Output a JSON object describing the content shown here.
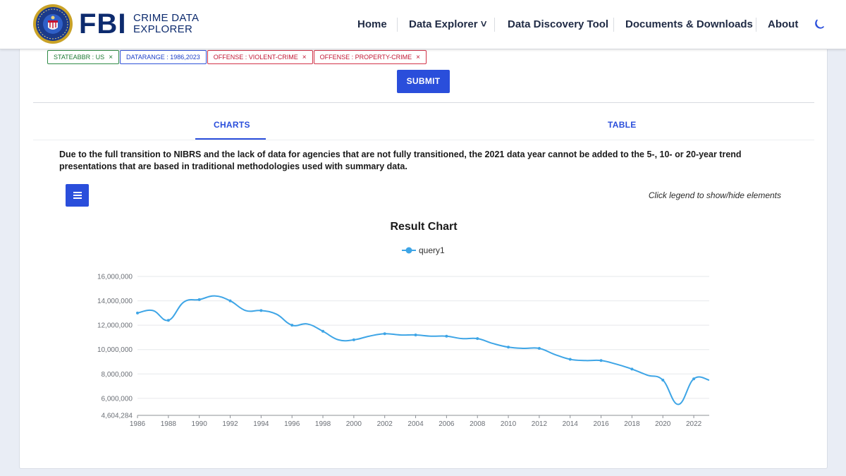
{
  "header": {
    "brand_main": "FBI",
    "brand_sub_line1": "CRIME DATA",
    "brand_sub_line2": "EXPLORER",
    "nav": [
      {
        "label": "Home"
      },
      {
        "label": "Data Explorer ˅"
      },
      {
        "label": "Data Discovery Tool"
      },
      {
        "label": "Documents & Downloads"
      },
      {
        "label": "About"
      }
    ]
  },
  "filters": [
    {
      "label": "STATEABBR : US",
      "remove": "×",
      "color": "#2e8b46"
    },
    {
      "label": "DATARANGE : 1986,2023",
      "remove": "",
      "color": "#2f52d8"
    },
    {
      "label": "OFFENSE : VIOLENT-CRIME",
      "remove": "×",
      "color": "#d23349"
    },
    {
      "label": "OFFENSE : PROPERTY-CRIME",
      "remove": "×",
      "color": "#d23349"
    }
  ],
  "submit_label": "SUBMIT",
  "tabs": {
    "charts": "CHARTS",
    "table": "TABLE"
  },
  "notice": "Due to the full transition to NIBRS and the lack of data for agencies that are not fully transitioned, the 2021 data year cannot be added to the 5-, 10- or 20-year trend presentations that are based in traditional methodologies used with summary data.",
  "legend_hint": "Click legend to show/hide elements",
  "colors": {
    "accent": "#2a4edb",
    "series": "#3ea5e6",
    "brand": "#0d2b6e"
  },
  "chart_data": {
    "type": "line",
    "title": "Result Chart",
    "series": [
      {
        "name": "query1",
        "x": [
          1986,
          1987,
          1988,
          1989,
          1990,
          1991,
          1992,
          1993,
          1994,
          1995,
          1996,
          1997,
          1998,
          1999,
          2000,
          2001,
          2002,
          2003,
          2004,
          2005,
          2006,
          2007,
          2008,
          2009,
          2010,
          2011,
          2012,
          2013,
          2014,
          2015,
          2016,
          2017,
          2018,
          2019,
          2020,
          2021,
          2022,
          2023
        ],
        "values": [
          13000000,
          13200000,
          12400000,
          13900000,
          14100000,
          14400000,
          14000000,
          13200000,
          13200000,
          12900000,
          12000000,
          12100000,
          11500000,
          10800000,
          10800000,
          11100000,
          11300000,
          11200000,
          11200000,
          11100000,
          11100000,
          10900000,
          10900000,
          10500000,
          10200000,
          10100000,
          10100000,
          9600000,
          9200000,
          9100000,
          9100000,
          8800000,
          8400000,
          7900000,
          7500000,
          5500000,
          7600000,
          7500000
        ],
        "markers": [
          1986,
          1988,
          1990,
          1992,
          1994,
          1996,
          1998,
          2000,
          2002,
          2004,
          2006,
          2008,
          2010,
          2012,
          2014,
          2016,
          2018,
          2020,
          2022
        ]
      }
    ],
    "yticks": [
      "16,000,000",
      "14,000,000",
      "12,000,000",
      "10,000,000",
      "8,000,000",
      "6,000,000",
      "4,604,284"
    ],
    "xticks": [
      "1986",
      "1988",
      "1990",
      "1992",
      "1994",
      "1996",
      "1998",
      "2000",
      "2002",
      "2004",
      "2006",
      "2008",
      "2010",
      "2012",
      "2014",
      "2016",
      "2018",
      "2020",
      "2022"
    ],
    "ylim": [
      4604284,
      16000000
    ],
    "xlim": [
      1986,
      2023
    ],
    "grid": true,
    "legend": "top-center"
  }
}
